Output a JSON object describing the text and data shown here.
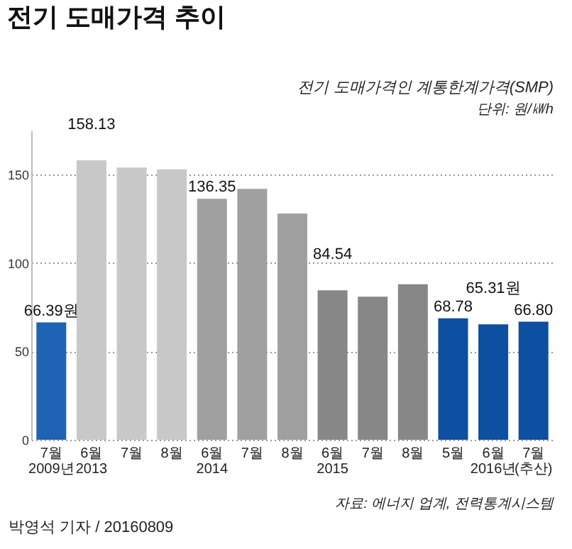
{
  "chart_data": {
    "type": "bar",
    "title": "전기 도매가격 추이",
    "categories": [
      "7월\n2009년",
      "6월\n2013",
      "7월",
      "8월",
      "6월\n2014",
      "7월",
      "8월",
      "6월\n2015",
      "7월",
      "8월",
      "5월",
      "6월\n2016년",
      "7월\n(추산)"
    ],
    "values": [
      66.39,
      158.13,
      154,
      153,
      136.35,
      142,
      128,
      84.54,
      81,
      88,
      68.78,
      65.31,
      66.8
    ],
    "colors": [
      "#1f64b4",
      "#c8c8c8",
      "#c8c8c8",
      "#c8c8c8",
      "#a0a0a0",
      "#a0a0a0",
      "#a0a0a0",
      "#878787",
      "#878787",
      "#878787",
      "#0d4fa0",
      "#0d4fa0",
      "#0d4fa0"
    ],
    "value_labels": [
      "66.39원",
      "158.13",
      null,
      null,
      "136.35",
      null,
      null,
      "84.54",
      null,
      null,
      "68.78",
      "65.31원",
      "66.80"
    ],
    "ylim": [
      0,
      175
    ],
    "yticks": [
      0,
      50,
      100,
      150
    ],
    "grid": "y",
    "annotations": [
      "전기 도매가격인 계통한계가격(SMP)",
      "단위: 원/㎾h",
      "자료: 에너지 업계, 전력통계시스템",
      "박영석 기자 / 20160809"
    ]
  }
}
